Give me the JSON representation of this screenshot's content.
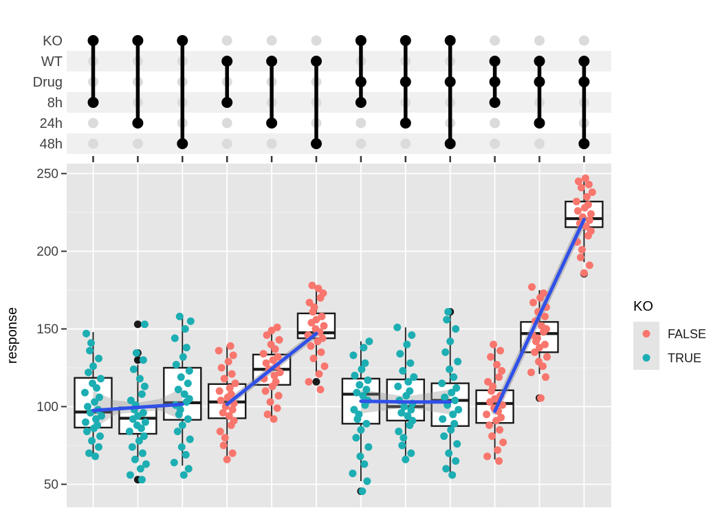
{
  "matrix": {
    "rows": [
      "KO",
      "WT",
      "Drug",
      "8h",
      "24h",
      "48h"
    ],
    "striped_row_indices": [
      1,
      3,
      5
    ],
    "combos": [
      [
        "KO",
        "8h"
      ],
      [
        "KO",
        "24h"
      ],
      [
        "KO",
        "48h"
      ],
      [
        "WT",
        "8h"
      ],
      [
        "WT",
        "24h"
      ],
      [
        "WT",
        "48h"
      ],
      [
        "KO",
        "Drug",
        "8h"
      ],
      [
        "KO",
        "Drug",
        "24h"
      ],
      [
        "KO",
        "Drug",
        "48h"
      ],
      [
        "WT",
        "Drug",
        "8h"
      ],
      [
        "WT",
        "Drug",
        "24h"
      ],
      [
        "WT",
        "Drug",
        "48h"
      ]
    ],
    "colors": {
      "active": "#000000",
      "inactive": "#DBDBDB",
      "stripe": "#F0F0F0"
    }
  },
  "chart_data": {
    "type": "boxplot",
    "title": "",
    "xlabel": "",
    "ylabel": "response",
    "y_ticks": [
      50,
      100,
      150,
      200,
      250
    ],
    "y_minor_ticks": [
      75,
      125,
      175,
      225
    ],
    "ylim": [
      35,
      257
    ],
    "grid": "on",
    "legend": {
      "title": "KO",
      "position": "right",
      "entries": [
        {
          "label": "FALSE",
          "color": "#F8766D"
        },
        {
          "label": "TRUE",
          "color": "#1CAEB3"
        }
      ]
    },
    "panel_bg": "#E6E6E6",
    "smooth_color": "#3050E8",
    "band_color": "#8C8C8C",
    "groups": [
      {
        "combo": [
          "KO",
          "8h"
        ],
        "ko": "TRUE",
        "box": {
          "low": 68,
          "q1": 86.5,
          "median": 96.5,
          "q3": 118.5,
          "high": 148
        },
        "outliers": [],
        "points": [
          68,
          70,
          74,
          78,
          81,
          84,
          86,
          88,
          90,
          92,
          94,
          96,
          98,
          100,
          103,
          106,
          109,
          112,
          115,
          118,
          122,
          126,
          131,
          136,
          141,
          147
        ]
      },
      {
        "combo": [
          "KO",
          "24h"
        ],
        "ko": "TRUE",
        "box": {
          "low": 65,
          "q1": 82.5,
          "median": 92.5,
          "q3": 99.5,
          "high": 127
        },
        "outliers": [
          153,
          134.5,
          130,
          53
        ],
        "points": [
          53,
          56,
          60,
          63,
          66,
          70,
          74,
          78,
          81,
          84,
          86,
          88,
          90,
          92,
          94,
          96,
          98,
          101,
          104,
          108,
          113,
          118,
          124,
          130,
          134.5,
          153
        ]
      },
      {
        "combo": [
          "KO",
          "48h"
        ],
        "ko": "TRUE",
        "box": {
          "low": 62,
          "q1": 91.5,
          "median": 102.5,
          "q3": 125,
          "high": 157
        },
        "outliers": [],
        "points": [
          56,
          60,
          64,
          69,
          74,
          79,
          84,
          88,
          92,
          95,
          98,
          101,
          103,
          105,
          108,
          111,
          115,
          119,
          123,
          127,
          132,
          138,
          144,
          150,
          155,
          158
        ]
      },
      {
        "combo": [
          "WT",
          "8h"
        ],
        "ko": "FALSE",
        "box": {
          "low": 67,
          "q1": 92.5,
          "median": 103,
          "q3": 114.5,
          "high": 139
        },
        "outliers": [],
        "points": [
          66,
          70,
          75,
          80,
          84,
          88,
          91,
          94,
          96,
          98,
          100,
          102,
          104,
          106,
          108,
          110,
          112,
          115,
          118,
          121,
          125,
          129,
          133,
          136,
          139
        ]
      },
      {
        "combo": [
          "WT",
          "24h"
        ],
        "ko": "FALSE",
        "box": {
          "low": 92,
          "q1": 114,
          "median": 124,
          "q3": 133.5,
          "high": 151
        },
        "outliers": [],
        "points": [
          92,
          95,
          99,
          103,
          107,
          110,
          113,
          116,
          118,
          120,
          122,
          124,
          126,
          128,
          130,
          132,
          134,
          137,
          140,
          143,
          146,
          149,
          151
        ]
      },
      {
        "combo": [
          "WT",
          "48h"
        ],
        "ko": "FALSE",
        "box": {
          "low": 120,
          "q1": 144,
          "median": 147.5,
          "q3": 160,
          "high": 178
        },
        "outliers": [
          116
        ],
        "points": [
          111,
          116,
          121,
          126,
          131,
          135,
          139,
          142,
          144,
          146,
          148,
          150,
          152,
          154,
          156,
          158,
          161,
          164,
          167,
          170,
          173,
          176,
          178
        ]
      },
      {
        "combo": [
          "KO",
          "Drug",
          "8h"
        ],
        "ko": "TRUE",
        "box": {
          "low": 52,
          "q1": 89,
          "median": 108,
          "q3": 118,
          "high": 142
        },
        "outliers": [
          45.5
        ],
        "points": [
          45.5,
          52,
          57,
          63,
          68,
          74,
          80,
          85,
          89,
          92,
          95,
          98,
          101,
          104,
          107,
          109,
          111,
          114,
          117,
          120,
          124,
          128,
          133,
          138,
          142
        ]
      },
      {
        "combo": [
          "KO",
          "Drug",
          "24h"
        ],
        "ko": "TRUE",
        "box": {
          "low": 66,
          "q1": 91,
          "median": 100,
          "q3": 117.5,
          "high": 151
        },
        "outliers": [],
        "points": [
          66,
          70,
          75,
          80,
          84,
          88,
          91,
          94,
          96,
          98,
          100,
          102,
          104,
          107,
          110,
          113,
          116,
          119,
          123,
          128,
          134,
          140,
          146,
          151
        ]
      },
      {
        "combo": [
          "KO",
          "Drug",
          "48h"
        ],
        "ko": "TRUE",
        "box": {
          "low": 56,
          "q1": 87.5,
          "median": 104,
          "q3": 115,
          "high": 160
        },
        "outliers": [
          161
        ],
        "points": [
          56,
          60,
          65,
          70,
          76,
          81,
          85,
          89,
          92,
          95,
          98,
          101,
          104,
          106,
          109,
          112,
          115,
          119,
          124,
          129,
          135,
          142,
          150,
          156,
          161
        ]
      },
      {
        "combo": [
          "WT",
          "Drug",
          "8h"
        ],
        "ko": "FALSE",
        "box": {
          "low": 66,
          "q1": 89.5,
          "median": 102,
          "q3": 110.5,
          "high": 139
        },
        "outliers": [],
        "points": [
          65,
          68,
          72,
          77,
          81,
          85,
          88,
          91,
          93,
          95,
          97,
          99,
          101,
          103,
          105,
          107,
          110,
          113,
          116,
          119,
          123,
          127,
          132,
          136,
          140
        ]
      },
      {
        "combo": [
          "WT",
          "Drug",
          "24h"
        ],
        "ko": "FALSE",
        "box": {
          "low": 121,
          "q1": 135,
          "median": 147,
          "q3": 154.5,
          "high": 175
        },
        "outliers": [
          105.5
        ],
        "points": [
          105.5,
          119,
          122,
          126,
          129,
          132,
          135,
          138,
          140,
          142,
          144,
          146,
          148,
          150,
          152,
          155,
          158,
          161,
          164,
          167,
          170,
          173,
          177
        ]
      },
      {
        "combo": [
          "WT",
          "Drug",
          "48h"
        ],
        "ko": "FALSE",
        "box": {
          "low": 193,
          "q1": 215.5,
          "median": 221,
          "q3": 232,
          "high": 247
        },
        "outliers": [
          185.5
        ],
        "points": [
          186,
          191,
          196,
          201,
          206,
          210,
          213,
          216,
          218,
          220,
          222,
          224,
          226,
          228,
          230,
          232,
          235,
          238,
          241,
          243,
          245,
          247
        ]
      }
    ],
    "smooth_lines": [
      {
        "x": [
          1,
          2,
          3
        ],
        "v": [
          97.5,
          99.5,
          101.5
        ],
        "band": {
          "top": [
            [
              1,
              110
            ],
            [
              1.5,
              104
            ],
            [
              2,
              102.5
            ],
            [
              2.5,
              105
            ],
            [
              3,
              112
            ]
          ],
          "bottom": [
            [
              1,
              85.5
            ],
            [
              1.5,
              95
            ],
            [
              2,
              96.5
            ],
            [
              2.5,
              97.5
            ],
            [
              3,
              91
            ]
          ]
        }
      },
      {
        "x": [
          4,
          6
        ],
        "v": [
          101.5,
          147
        ],
        "band_width": 10
      },
      {
        "x": [
          7,
          8,
          9
        ],
        "v": [
          103.5,
          103,
          103
        ],
        "band": {
          "top": [
            [
              7,
              111
            ],
            [
              8,
              106.5
            ],
            [
              9,
              111
            ]
          ],
          "bottom": [
            [
              7,
              95.5
            ],
            [
              8,
              99.5
            ],
            [
              9,
              95
            ]
          ]
        }
      },
      {
        "x": [
          10,
          12
        ],
        "v": [
          97,
          220.5
        ],
        "band_width": 10
      }
    ],
    "jitter_offsets": [
      3,
      -6,
      8,
      -2,
      10,
      -9,
      1,
      6,
      -11,
      4,
      12,
      -4,
      7,
      -8,
      2,
      9,
      -12,
      5,
      -1,
      11,
      -7,
      0,
      8,
      -5,
      -3,
      -10,
      6,
      10
    ]
  }
}
